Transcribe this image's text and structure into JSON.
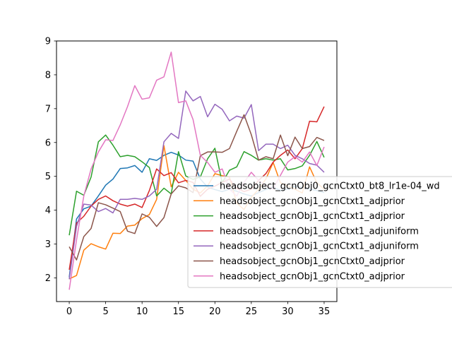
{
  "chart_data": {
    "type": "line",
    "title": "",
    "xlabel": "",
    "ylabel": "",
    "xlim": [
      -1.75,
      36.75
    ],
    "ylim": [
      1.3,
      9.0
    ],
    "xticks": [
      0,
      5,
      10,
      15,
      20,
      25,
      30,
      35
    ],
    "yticks": [
      2,
      3,
      4,
      5,
      6,
      7,
      8,
      9
    ],
    "grid": false,
    "legend_position": "center-right",
    "x": [
      0,
      1,
      2,
      3,
      4,
      5,
      6,
      7,
      8,
      9,
      10,
      11,
      12,
      13,
      14,
      15,
      16,
      17,
      18,
      19,
      20,
      21,
      22,
      23,
      24,
      25,
      26,
      27,
      28,
      29,
      30,
      31,
      32,
      33,
      34,
      35
    ],
    "series": [
      {
        "name": "headsobject_gcnObj0_gcnCtxt0_bt8_lr1e-04_wd",
        "color": "#1f77b4",
        "values": [
          2.02,
          3.74,
          4.04,
          4.12,
          4.42,
          4.74,
          4.92,
          5.23,
          5.25,
          5.32,
          5.12,
          5.52,
          5.47,
          5.62,
          5.71,
          5.63,
          5.48,
          5.45,
          4.92,
          4.68,
          4.61,
          4.55,
          4.62,
          4.56,
          4.48,
          4.42,
          4.52,
          4.61,
          4.68,
          4.58,
          4.62,
          4.71,
          4.68,
          4.62,
          4.58,
          4.52
        ]
      },
      {
        "name": "headsobject_gcnObj1_gcnCtxt1_adjprior",
        "color": "#ff7f0e",
        "values": [
          1.97,
          2.07,
          2.82,
          3.01,
          2.92,
          2.85,
          3.32,
          3.31,
          3.53,
          3.56,
          3.75,
          3.87,
          4.32,
          5.91,
          4.69,
          5.12,
          4.88,
          4.62,
          4.51,
          4.72,
          5.08,
          5.02,
          4.98,
          4.21,
          4.02,
          4.38,
          4.62,
          4.92,
          5.41,
          4.81,
          4.72,
          4.62,
          4.51,
          5.28,
          4.81,
          4.62
        ]
      },
      {
        "name": "headsobject_gcnObj1_gcnCtxt1_adjprior",
        "color": "#2ca02c",
        "values": [
          3.26,
          4.56,
          4.44,
          4.98,
          6.02,
          6.22,
          5.92,
          5.58,
          5.62,
          5.58,
          5.43,
          5.26,
          4.42,
          4.65,
          4.48,
          5.73,
          5.01,
          4.91,
          4.98,
          5.52,
          5.83,
          4.81,
          5.18,
          5.28,
          5.73,
          5.62,
          5.48,
          5.52,
          5.48,
          5.52,
          5.19,
          5.23,
          5.31,
          5.62,
          6.03,
          5.56
        ]
      },
      {
        "name": "headsobject_gcnObj1_gcnCtxt1_adjuniform",
        "color": "#d62728",
        "values": [
          2.24,
          3.62,
          3.82,
          4.12,
          4.32,
          4.42,
          4.28,
          4.18,
          4.12,
          4.18,
          4.08,
          4.58,
          5.22,
          5.02,
          5.11,
          4.81,
          4.88,
          4.82,
          4.41,
          4.62,
          4.71,
          4.82,
          4.92,
          4.65,
          4.55,
          4.62,
          4.88,
          5.08,
          5.42,
          5.62,
          5.78,
          5.52,
          5.82,
          6.63,
          6.61,
          7.06
        ]
      },
      {
        "name": "headsobject_gcnObj1_gcnCtxt1_adjuniform",
        "color": "#9467bd",
        "values": [
          1.96,
          3.52,
          4.18,
          4.15,
          3.96,
          4.05,
          3.92,
          4.32,
          4.32,
          4.35,
          4.32,
          4.42,
          4.62,
          6.02,
          6.27,
          6.12,
          7.52,
          7.23,
          7.36,
          6.76,
          7.13,
          6.98,
          6.64,
          6.78,
          6.72,
          7.12,
          5.76,
          5.95,
          5.95,
          5.82,
          5.92,
          5.62,
          5.52,
          5.38,
          5.33,
          5.12
        ]
      },
      {
        "name": "headsobject_gcnObj1_gcnCtxt0_adjprior",
        "color": "#8c564b",
        "values": [
          2.92,
          2.53,
          3.22,
          3.46,
          4.22,
          4.16,
          4.06,
          3.96,
          3.38,
          3.31,
          3.89,
          3.79,
          3.52,
          3.78,
          4.48,
          4.72,
          4.66,
          4.52,
          5.61,
          5.72,
          5.72,
          5.71,
          5.82,
          6.33,
          6.82,
          6.23,
          5.48,
          5.58,
          5.52,
          6.22,
          5.61,
          6.16,
          5.82,
          5.88,
          6.15,
          6.06
        ]
      },
      {
        "name": "headsobject_gcnObj1_gcnCtxt0_adjprior",
        "color": "#e377c2",
        "values": [
          1.65,
          3.12,
          4.42,
          5.22,
          5.72,
          6.08,
          6.06,
          6.52,
          7.06,
          7.68,
          7.28,
          7.32,
          7.84,
          7.94,
          8.67,
          7.18,
          7.23,
          6.68,
          5.62,
          5.41,
          5.12,
          5.22,
          4.62,
          4.42,
          4.82,
          5.12,
          4.88,
          4.73,
          4.62,
          5.03,
          5.42,
          5.58,
          5.42,
          5.72,
          5.32,
          5.87
        ]
      }
    ]
  }
}
